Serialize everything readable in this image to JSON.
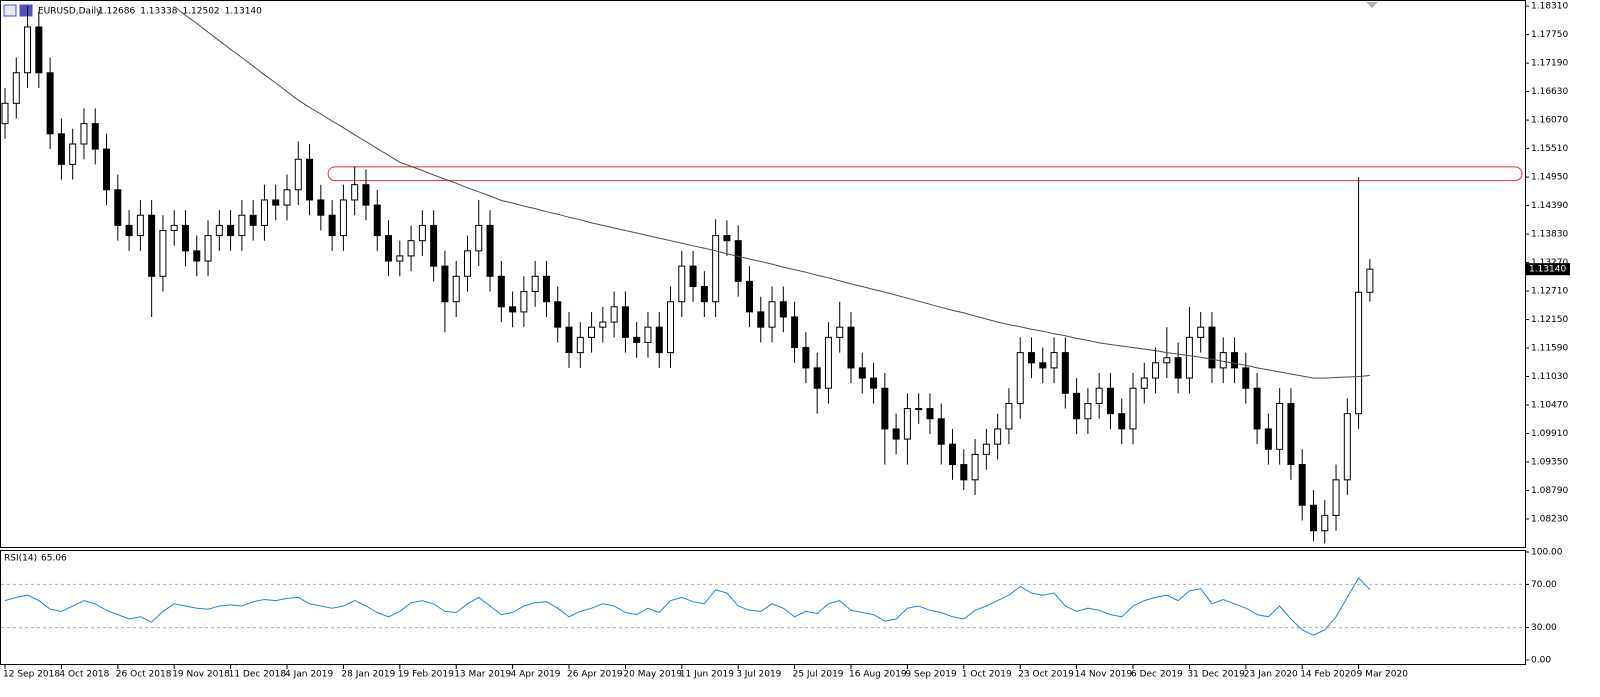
{
  "chart_data": {
    "type": "candlestick",
    "title": "EURUSD,Daily",
    "ohlc_info": [
      1.12686,
      1.13338,
      1.12502,
      {
        "value": 1.1314,
        "label": "1.13140"
      }
    ],
    "categories": [
      "12 Sep 2018",
      null,
      null,
      null,
      null,
      "4 Oct 2018",
      null,
      null,
      null,
      null,
      "26 Oct 2018",
      null,
      null,
      null,
      null,
      "19 Nov 2018",
      null,
      null,
      null,
      null,
      "11 Dec 2018",
      null,
      null,
      null,
      null,
      "4 Jan 2019",
      null,
      null,
      null,
      null,
      "28 Jan 2019",
      null,
      null,
      null,
      null,
      "19 Feb 2019",
      null,
      null,
      null,
      null,
      "13 Mar 2019",
      null,
      null,
      null,
      null,
      "4 Apr 2019",
      null,
      null,
      null,
      null,
      "26 Apr 2019",
      null,
      null,
      null,
      null,
      "20 May 2019",
      null,
      null,
      null,
      null,
      "11 Jun 2019",
      null,
      null,
      null,
      null,
      "3 Jul 2019",
      null,
      null,
      null,
      null,
      "25 Jul 2019",
      null,
      null,
      null,
      null,
      "16 Aug 2019",
      null,
      null,
      null,
      null,
      "9 Sep 2019",
      null,
      null,
      null,
      null,
      "1 Oct 2019",
      null,
      null,
      null,
      null,
      "23 Oct 2019",
      null,
      null,
      null,
      null,
      "14 Nov 2019",
      null,
      null,
      null,
      null,
      "6 Dec 2019",
      null,
      null,
      null,
      null,
      "31 Dec 2019",
      null,
      null,
      null,
      null,
      "23 Jan 2020",
      null,
      null,
      null,
      null,
      "14 Feb 2020",
      null,
      null,
      null,
      null,
      "9 Mar 2020",
      null
    ],
    "open": [
      1.16,
      1.164,
      1.17,
      1.179,
      1.17,
      1.158,
      1.152,
      1.156,
      1.16,
      1.155,
      1.147,
      1.14,
      1.138,
      1.142,
      1.13,
      1.139,
      1.14,
      1.135,
      1.133,
      1.138,
      1.14,
      1.138,
      1.142,
      1.14,
      1.145,
      1.144,
      1.147,
      1.153,
      1.145,
      1.142,
      1.138,
      1.145,
      1.148,
      1.144,
      1.138,
      1.133,
      1.134,
      1.137,
      1.14,
      1.132,
      1.125,
      1.13,
      1.135,
      1.14,
      1.13,
      1.124,
      1.123,
      1.127,
      1.13,
      1.125,
      1.12,
      1.115,
      1.118,
      1.12,
      1.121,
      1.124,
      1.118,
      1.117,
      1.12,
      1.115,
      1.125,
      1.132,
      1.128,
      1.125,
      1.138,
      1.137,
      1.129,
      1.123,
      1.12,
      1.125,
      1.122,
      1.116,
      1.112,
      1.108,
      1.118,
      1.12,
      1.112,
      1.11,
      1.108,
      1.1,
      1.098,
      1.104,
      1.104,
      1.102,
      1.097,
      1.093,
      1.09,
      1.095,
      1.097,
      1.1,
      1.105,
      1.115,
      1.113,
      1.112,
      1.115,
      1.107,
      1.102,
      1.105,
      1.108,
      1.103,
      1.1,
      1.108,
      1.11,
      1.113,
      1.114,
      1.11,
      1.118,
      1.12,
      1.112,
      1.115,
      1.112,
      1.108,
      1.1,
      1.096,
      1.105,
      1.093,
      1.085,
      1.08,
      1.083,
      1.09,
      1.103,
      1.12686
    ],
    "high": [
      1.167,
      1.173,
      1.183,
      1.182,
      1.173,
      1.161,
      1.159,
      1.163,
      1.163,
      1.158,
      1.15,
      1.143,
      1.145,
      1.145,
      1.142,
      1.143,
      1.143,
      1.138,
      1.141,
      1.143,
      1.143,
      1.145,
      1.145,
      1.148,
      1.148,
      1.15,
      1.1565,
      1.156,
      1.148,
      1.145,
      1.148,
      1.1515,
      1.151,
      1.147,
      1.141,
      1.137,
      1.14,
      1.143,
      1.143,
      1.135,
      1.133,
      1.138,
      1.145,
      1.143,
      1.133,
      1.127,
      1.13,
      1.133,
      1.133,
      1.128,
      1.123,
      1.121,
      1.123,
      1.124,
      1.127,
      1.127,
      1.121,
      1.123,
      1.123,
      1.128,
      1.135,
      1.135,
      1.131,
      1.1412,
      1.141,
      1.14,
      1.132,
      1.126,
      1.128,
      1.128,
      1.125,
      1.119,
      1.115,
      1.121,
      1.125,
      1.123,
      1.115,
      1.113,
      1.111,
      1.103,
      1.107,
      1.107,
      1.107,
      1.105,
      1.1,
      1.096,
      1.098,
      1.1,
      1.103,
      1.108,
      1.118,
      1.118,
      1.116,
      1.118,
      1.118,
      1.11,
      1.108,
      1.111,
      1.111,
      1.106,
      1.111,
      1.113,
      1.116,
      1.12,
      1.117,
      1.124,
      1.123,
      1.123,
      1.118,
      1.118,
      1.115,
      1.111,
      1.103,
      1.108,
      1.108,
      1.096,
      1.088,
      1.086,
      1.093,
      1.106,
      1.1495,
      1.13338
    ],
    "low": [
      1.157,
      1.161,
      1.167,
      1.167,
      1.155,
      1.149,
      1.149,
      1.153,
      1.152,
      1.144,
      1.137,
      1.135,
      1.135,
      1.122,
      1.127,
      1.136,
      1.132,
      1.13,
      1.13,
      1.135,
      1.135,
      1.135,
      1.137,
      1.137,
      1.141,
      1.141,
      1.144,
      1.142,
      1.139,
      1.135,
      1.135,
      1.142,
      1.141,
      1.135,
      1.13,
      1.13,
      1.131,
      1.134,
      1.129,
      1.119,
      1.122,
      1.127,
      1.132,
      1.127,
      1.121,
      1.12,
      1.12,
      1.124,
      1.122,
      1.117,
      1.112,
      1.112,
      1.115,
      1.117,
      1.118,
      1.115,
      1.114,
      1.114,
      1.112,
      1.112,
      1.122,
      1.125,
      1.122,
      1.122,
      1.134,
      1.126,
      1.12,
      1.117,
      1.117,
      1.119,
      1.113,
      1.109,
      1.103,
      1.105,
      1.115,
      1.109,
      1.107,
      1.105,
      1.093,
      1.095,
      1.093,
      1.101,
      1.099,
      1.093,
      1.09,
      1.088,
      1.087,
      1.092,
      1.094,
      1.097,
      1.102,
      1.11,
      1.109,
      1.109,
      1.104,
      1.099,
      1.099,
      1.102,
      1.1,
      1.097,
      1.097,
      1.105,
      1.107,
      1.11,
      1.107,
      1.107,
      1.115,
      1.109,
      1.109,
      1.109,
      1.105,
      1.097,
      1.093,
      1.093,
      1.09,
      1.082,
      1.078,
      1.0775,
      1.08,
      1.087,
      1.1,
      1.12502
    ],
    "close": [
      1.164,
      1.17,
      1.179,
      1.17,
      1.158,
      1.152,
      1.156,
      1.16,
      1.155,
      1.147,
      1.14,
      1.138,
      1.142,
      1.13,
      1.139,
      1.14,
      1.135,
      1.133,
      1.138,
      1.14,
      1.138,
      1.142,
      1.14,
      1.145,
      1.144,
      1.147,
      1.153,
      1.145,
      1.142,
      1.138,
      1.145,
      1.148,
      1.144,
      1.138,
      1.133,
      1.134,
      1.137,
      1.14,
      1.132,
      1.125,
      1.13,
      1.135,
      1.14,
      1.13,
      1.124,
      1.123,
      1.127,
      1.13,
      1.125,
      1.12,
      1.115,
      1.118,
      1.12,
      1.121,
      1.124,
      1.118,
      1.117,
      1.12,
      1.115,
      1.125,
      1.132,
      1.128,
      1.125,
      1.138,
      1.137,
      1.129,
      1.123,
      1.12,
      1.125,
      1.122,
      1.116,
      1.112,
      1.108,
      1.118,
      1.12,
      1.112,
      1.11,
      1.108,
      1.1,
      1.098,
      1.104,
      1.104,
      1.102,
      1.097,
      1.093,
      1.09,
      1.095,
      1.097,
      1.1,
      1.105,
      1.115,
      1.113,
      1.112,
      1.115,
      1.107,
      1.102,
      1.105,
      1.108,
      1.103,
      1.1,
      1.108,
      1.11,
      1.113,
      1.114,
      1.11,
      1.118,
      1.12,
      1.112,
      1.115,
      1.112,
      1.108,
      1.1,
      1.096,
      1.105,
      1.093,
      1.085,
      1.08,
      1.083,
      1.09,
      1.103,
      1.12686,
      1.1314
    ],
    "colors": {
      "up": "#ffffff",
      "down": "#000000",
      "wick": "#000000"
    },
    "ma": {
      "color": "#4d4d4d",
      "values": [
        null,
        null,
        null,
        null,
        null,
        null,
        null,
        null,
        null,
        null,
        null,
        null,
        null,
        null,
        null,
        1.183,
        1.1813,
        1.1797,
        1.178,
        1.1763,
        1.1746,
        1.173,
        1.1713,
        1.1696,
        1.168,
        1.1663,
        1.1646,
        1.1632,
        1.1619,
        1.1605,
        1.1592,
        1.1578,
        1.1565,
        1.1551,
        1.1538,
        1.1524,
        1.1516,
        1.1508,
        1.1499,
        1.1491,
        1.1483,
        1.1474,
        1.1466,
        1.1458,
        1.1449,
        1.1444,
        1.1438,
        1.1433,
        1.1427,
        1.1422,
        1.1416,
        1.1411,
        1.1405,
        1.14,
        1.1395,
        1.139,
        1.1385,
        1.138,
        1.1375,
        1.137,
        1.1365,
        1.136,
        1.1355,
        1.135,
        1.1344,
        1.1339,
        1.1334,
        1.1329,
        1.1324,
        1.1318,
        1.1313,
        1.1308,
        1.1302,
        1.1297,
        1.1291,
        1.1285,
        1.128,
        1.1274,
        1.1269,
        1.1263,
        1.1257,
        1.1251,
        1.1245,
        1.1239,
        1.1233,
        1.1228,
        1.1222,
        1.1216,
        1.121,
        1.1205,
        1.1201,
        1.1196,
        1.1192,
        1.1187,
        1.1183,
        1.1178,
        1.1174,
        1.1169,
        1.1166,
        1.1163,
        1.116,
        1.1157,
        1.1154,
        1.115,
        1.1147,
        1.1144,
        1.1141,
        1.1137,
        1.1133,
        1.1129,
        1.1125,
        1.112,
        1.1116,
        1.1112,
        1.1108,
        1.1104,
        1.11,
        1.11,
        1.1101,
        1.1102,
        1.1103,
        1.1105
      ]
    },
    "ylim": [
      1.0766,
      1.1843
    ],
    "yticks": [
      {
        "value": 1.1831,
        "label": "1.18310"
      },
      {
        "value": 1.1775,
        "label": "1.17750"
      },
      {
        "value": 1.1719,
        "label": "1.17190"
      },
      {
        "value": 1.1663,
        "label": "1.16630"
      },
      {
        "value": 1.1607,
        "label": "1.16070"
      },
      {
        "value": 1.1551,
        "label": "1.15510"
      },
      {
        "value": 1.1495,
        "label": "1.14950"
      },
      {
        "value": 1.1439,
        "label": "1.14390"
      },
      {
        "value": 1.1383,
        "label": "1.13830"
      },
      {
        "value": 1.1327,
        "label": "1.13270"
      },
      {
        "value": 1.1271,
        "label": "1.12710"
      },
      {
        "value": 1.1215,
        "label": "1.12150"
      },
      {
        "value": 1.1159,
        "label": "1.11590"
      },
      {
        "value": 1.1103,
        "label": "1.11030"
      },
      {
        "value": 1.1047,
        "label": "1.10470"
      },
      {
        "value": 1.0991,
        "label": "1.09910"
      },
      {
        "value": 1.0935,
        "label": "1.09350"
      },
      {
        "value": 1.0879,
        "label": "1.08790"
      },
      {
        "value": 1.0823,
        "label": "1.08230"
      }
    ],
    "last_price": {
      "value": 1.1314,
      "label": "1.13140"
    },
    "zone": {
      "start": 29,
      "top": 1.1515,
      "bottom": 1.1488,
      "color": "#e8312a"
    },
    "rsi": {
      "name": "RSI(14)",
      "color": "#1e88e5",
      "values": [
        55,
        58,
        60,
        55,
        47,
        45,
        50,
        55,
        52,
        46,
        42,
        38,
        40,
        35,
        45,
        52,
        50,
        48,
        47,
        50,
        51,
        50,
        54,
        56,
        55,
        57,
        58,
        52,
        50,
        48,
        50,
        55,
        50,
        44,
        40,
        45,
        53,
        55,
        52,
        45,
        44,
        52,
        58,
        50,
        42,
        44,
        50,
        53,
        54,
        48,
        40,
        45,
        48,
        52,
        50,
        44,
        42,
        48,
        44,
        55,
        58,
        54,
        52,
        65,
        62,
        50,
        46,
        45,
        52,
        48,
        40,
        45,
        43,
        52,
        55,
        46,
        44,
        42,
        36,
        38,
        48,
        50,
        46,
        44,
        40,
        38,
        46,
        50,
        55,
        60,
        68,
        62,
        60,
        62,
        50,
        45,
        48,
        46,
        42,
        40,
        50,
        55,
        58,
        60,
        55,
        64,
        66,
        52,
        56,
        52,
        48,
        42,
        40,
        50,
        38,
        28,
        23,
        28,
        40,
        58,
        76,
        65.06
      ],
      "ylim": [
        0,
        100
      ],
      "yticks": [
        {
          "value": 100,
          "label": "100.00"
        },
        {
          "value": 70,
          "label": "70.00"
        },
        {
          "value": 30,
          "label": "30.00"
        },
        {
          "value": 0,
          "label": "0.00"
        }
      ],
      "levels": [
        70,
        30
      ]
    }
  }
}
